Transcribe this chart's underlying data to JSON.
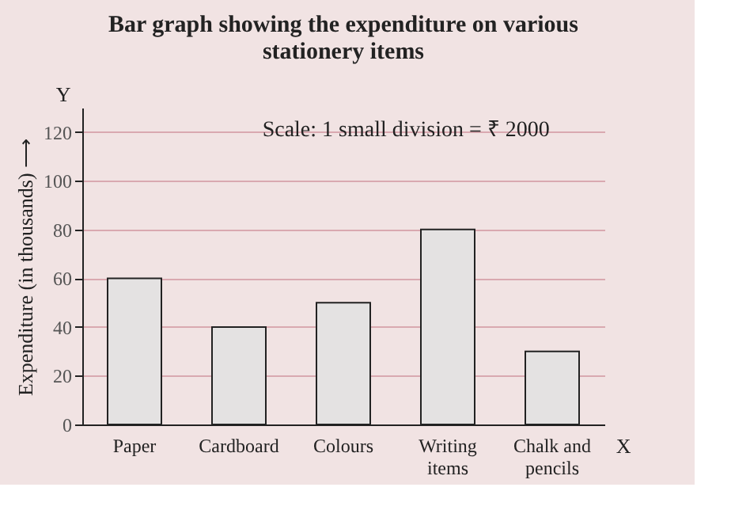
{
  "chart_data": {
    "type": "bar",
    "title": [
      "Bar graph showing the expenditure on various",
      "stationery items"
    ],
    "ylabel": "Expenditure (in thousands) ⟶",
    "categories": [
      "Paper",
      "Cardboard",
      "Colours",
      "Writing items",
      "Chalk and pencils"
    ],
    "values": [
      60,
      40,
      50,
      80,
      30
    ],
    "color": "#e4e2e2",
    "ylim": [
      0,
      130
    ],
    "yticks": [
      0,
      20,
      40,
      60,
      80,
      100,
      120
    ],
    "grid": "y",
    "annotations": [
      "Scale: 1 small division = ₹ 2000",
      "Y",
      "X"
    ]
  }
}
